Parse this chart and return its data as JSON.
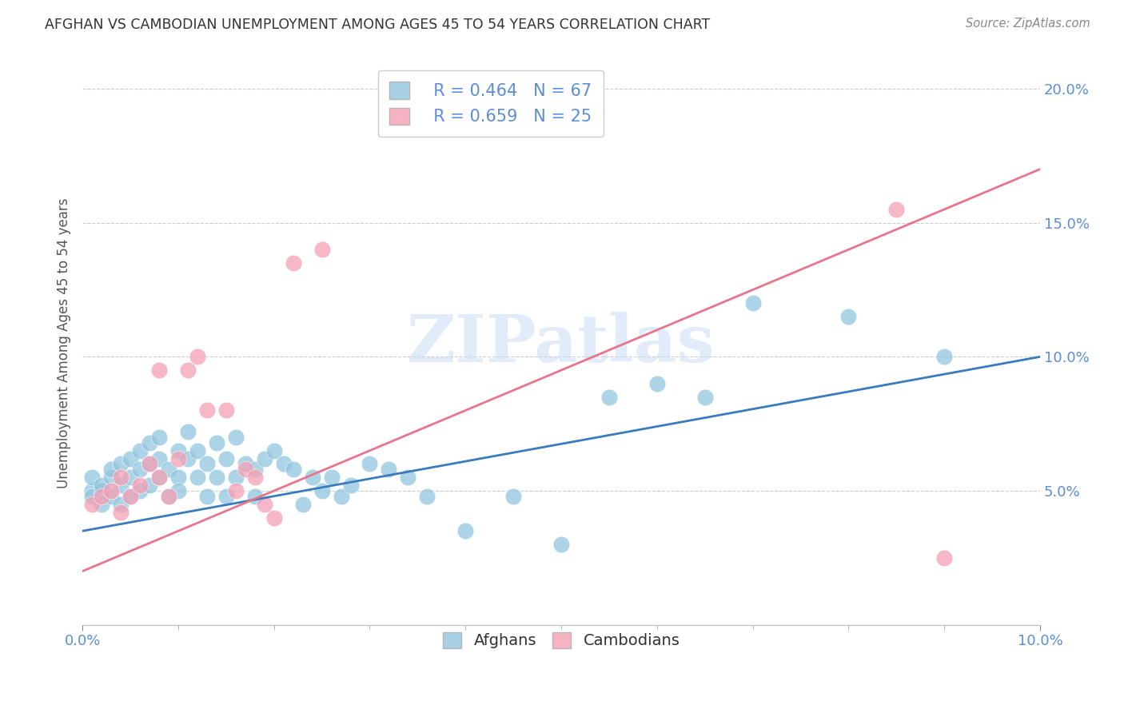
{
  "title": "AFGHAN VS CAMBODIAN UNEMPLOYMENT AMONG AGES 45 TO 54 YEARS CORRELATION CHART",
  "source": "Source: ZipAtlas.com",
  "ylabel": "Unemployment Among Ages 45 to 54 years",
  "xlim": [
    0.0,
    0.1
  ],
  "ylim": [
    0.0,
    0.21
  ],
  "yticks": [
    0.05,
    0.1,
    0.15,
    0.2
  ],
  "afghan_color": "#92c5de",
  "cambodian_color": "#f4a0b5",
  "afghan_line_color": "#3a7bbf",
  "cambodian_line_color": "#e8758a",
  "axis_color": "#5b8dd9",
  "watermark_color": "#cddff5",
  "legend_r_afghan": "R = 0.464",
  "legend_n_afghan": "N = 67",
  "legend_r_cambodian": "R = 0.659",
  "legend_n_cambodian": "N = 25",
  "afghan_line_x0": 0.0,
  "afghan_line_y0": 0.035,
  "afghan_line_x1": 0.1,
  "afghan_line_y1": 0.1,
  "cambodian_line_x0": 0.0,
  "cambodian_line_y0": 0.02,
  "cambodian_line_x1": 0.1,
  "cambodian_line_y1": 0.17,
  "afghan_x": [
    0.001,
    0.001,
    0.001,
    0.002,
    0.002,
    0.002,
    0.003,
    0.003,
    0.003,
    0.004,
    0.004,
    0.004,
    0.005,
    0.005,
    0.005,
    0.006,
    0.006,
    0.006,
    0.007,
    0.007,
    0.007,
    0.008,
    0.008,
    0.008,
    0.009,
    0.009,
    0.01,
    0.01,
    0.01,
    0.011,
    0.011,
    0.012,
    0.012,
    0.013,
    0.013,
    0.014,
    0.014,
    0.015,
    0.015,
    0.016,
    0.016,
    0.017,
    0.018,
    0.018,
    0.019,
    0.02,
    0.021,
    0.022,
    0.023,
    0.024,
    0.025,
    0.026,
    0.027,
    0.028,
    0.03,
    0.032,
    0.034,
    0.036,
    0.04,
    0.045,
    0.05,
    0.055,
    0.06,
    0.065,
    0.07,
    0.08,
    0.09
  ],
  "afghan_y": [
    0.05,
    0.055,
    0.048,
    0.05,
    0.052,
    0.045,
    0.055,
    0.058,
    0.048,
    0.052,
    0.06,
    0.045,
    0.055,
    0.062,
    0.048,
    0.058,
    0.065,
    0.05,
    0.06,
    0.068,
    0.052,
    0.062,
    0.055,
    0.07,
    0.058,
    0.048,
    0.065,
    0.055,
    0.05,
    0.062,
    0.072,
    0.055,
    0.065,
    0.06,
    0.048,
    0.068,
    0.055,
    0.062,
    0.048,
    0.07,
    0.055,
    0.06,
    0.058,
    0.048,
    0.062,
    0.065,
    0.06,
    0.058,
    0.045,
    0.055,
    0.05,
    0.055,
    0.048,
    0.052,
    0.06,
    0.058,
    0.055,
    0.048,
    0.035,
    0.048,
    0.03,
    0.085,
    0.09,
    0.085,
    0.12,
    0.115,
    0.1
  ],
  "cambodian_x": [
    0.001,
    0.002,
    0.003,
    0.004,
    0.004,
    0.005,
    0.006,
    0.007,
    0.008,
    0.008,
    0.009,
    0.01,
    0.011,
    0.012,
    0.013,
    0.015,
    0.016,
    0.017,
    0.018,
    0.019,
    0.02,
    0.022,
    0.025,
    0.085,
    0.09
  ],
  "cambodian_y": [
    0.045,
    0.048,
    0.05,
    0.042,
    0.055,
    0.048,
    0.052,
    0.06,
    0.055,
    0.095,
    0.048,
    0.062,
    0.095,
    0.1,
    0.08,
    0.08,
    0.05,
    0.058,
    0.055,
    0.045,
    0.04,
    0.135,
    0.14,
    0.155,
    0.025
  ]
}
